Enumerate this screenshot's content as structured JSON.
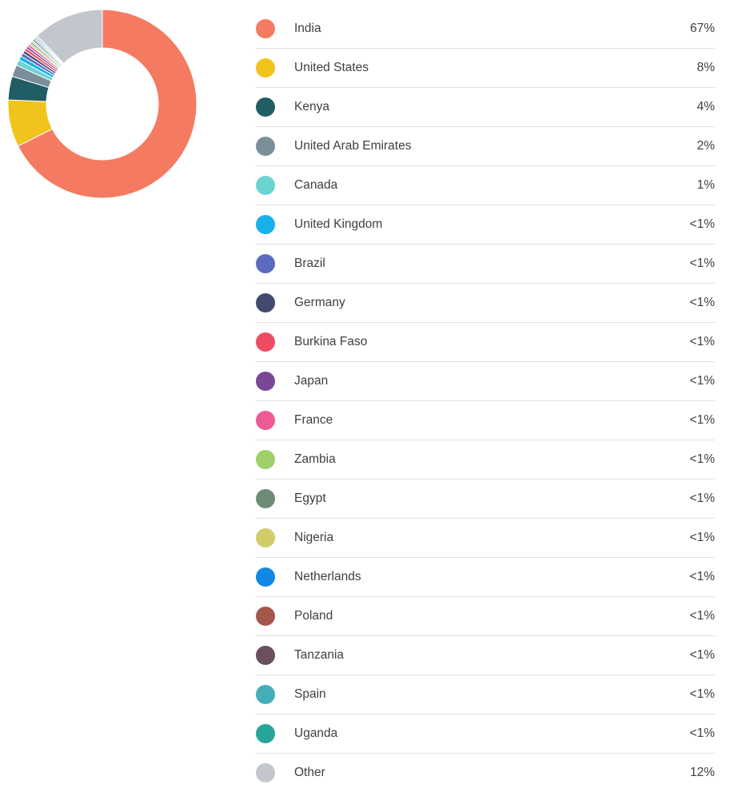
{
  "chart_data": {
    "type": "pie",
    "title": "",
    "legend_position": "right",
    "slices": [
      {
        "label": "India",
        "value_text": "67%",
        "value": 67,
        "color": "#f47b61"
      },
      {
        "label": "United States",
        "value_text": "8%",
        "value": 8,
        "color": "#f1c41b"
      },
      {
        "label": "Kenya",
        "value_text": "4%",
        "value": 4,
        "color": "#215d64"
      },
      {
        "label": "United Arab Emirates",
        "value_text": "2%",
        "value": 2,
        "color": "#7b8f9b"
      },
      {
        "label": "Canada",
        "value_text": "1%",
        "value": 1,
        "color": "#6cd4d0"
      },
      {
        "label": "United Kingdom",
        "value_text": "<1%",
        "value": 0.7,
        "color": "#17b1e9"
      },
      {
        "label": "Brazil",
        "value_text": "<1%",
        "value": 0.6,
        "color": "#5c6bc0"
      },
      {
        "label": "Germany",
        "value_text": "<1%",
        "value": 0.5,
        "color": "#424b6e"
      },
      {
        "label": "Burkina Faso",
        "value_text": "<1%",
        "value": 0.5,
        "color": "#ee4c63"
      },
      {
        "label": "Japan",
        "value_text": "<1%",
        "value": 0.4,
        "color": "#7a4797"
      },
      {
        "label": "France",
        "value_text": "<1%",
        "value": 0.4,
        "color": "#ee5a95"
      },
      {
        "label": "Zambia",
        "value_text": "<1%",
        "value": 0.3,
        "color": "#9ecf69"
      },
      {
        "label": "Egypt",
        "value_text": "<1%",
        "value": 0.3,
        "color": "#6e8b74"
      },
      {
        "label": "Nigeria",
        "value_text": "<1%",
        "value": 0.3,
        "color": "#d2cc6a"
      },
      {
        "label": "Netherlands",
        "value_text": "<1%",
        "value": 0.3,
        "color": "#1188e6"
      },
      {
        "label": "Poland",
        "value_text": "<1%",
        "value": 0.2,
        "color": "#a5574e"
      },
      {
        "label": "Tanzania",
        "value_text": "<1%",
        "value": 0.2,
        "color": "#6b4f5e"
      },
      {
        "label": "Spain",
        "value_text": "<1%",
        "value": 0.2,
        "color": "#45aeb8"
      },
      {
        "label": "Uganda",
        "value_text": "<1%",
        "value": 0.2,
        "color": "#26a69a"
      },
      {
        "label": "Other",
        "value_text": "12%",
        "value": 12,
        "color": "#c1c7cc"
      }
    ]
  }
}
